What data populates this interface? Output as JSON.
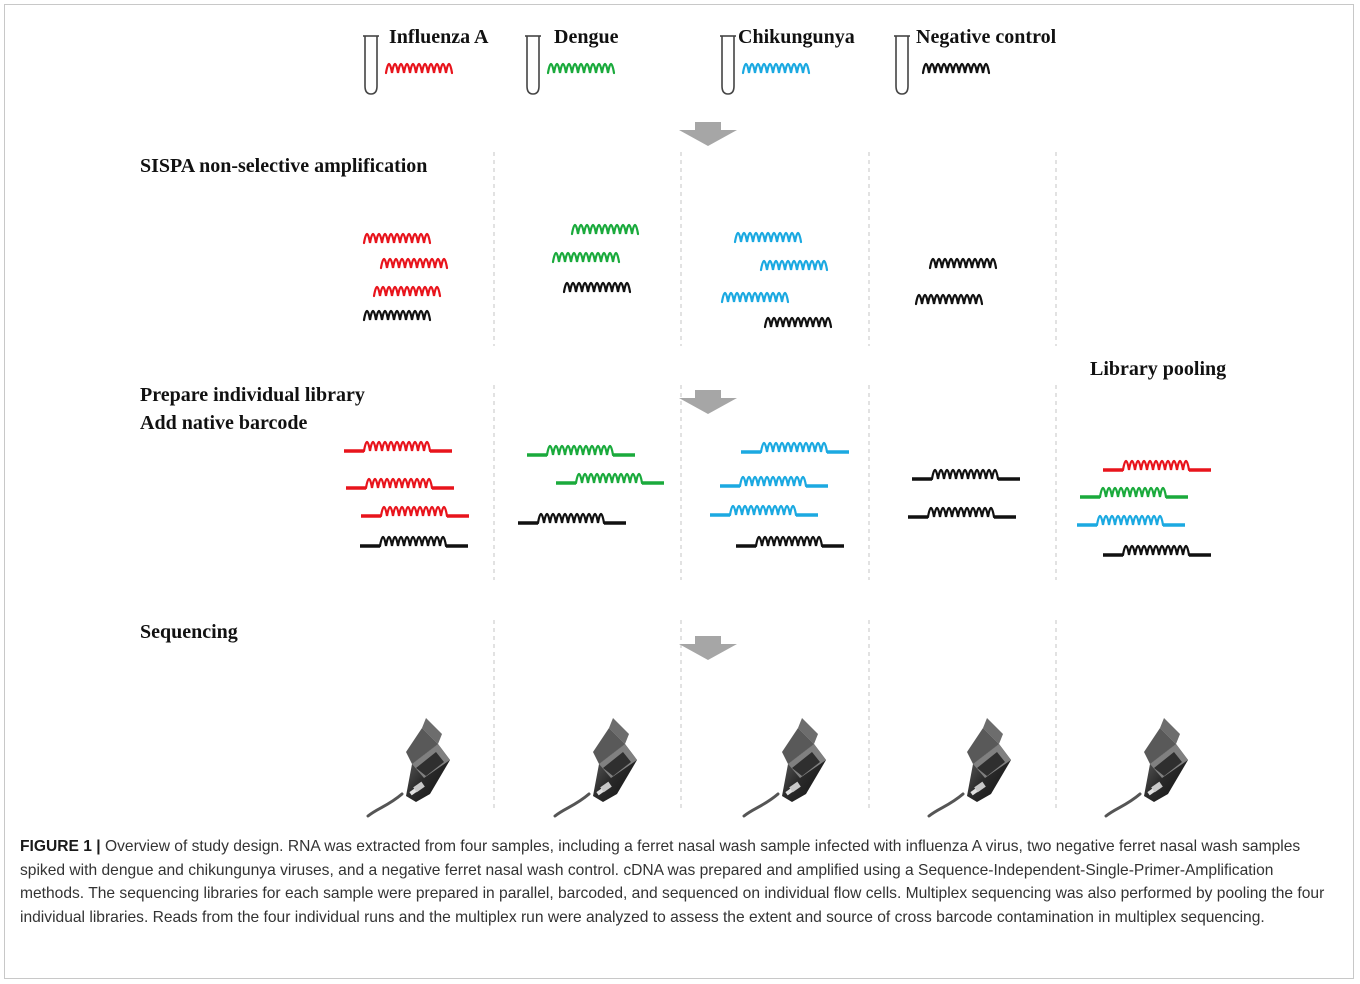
{
  "figure": {
    "samples": [
      {
        "name": "Influenza A",
        "color": "#e8141c"
      },
      {
        "name": "Dengue",
        "color": "#1aaa3c"
      },
      {
        "name": "Chikungunya",
        "color": "#1ba9e1"
      },
      {
        "name": "Negative control",
        "color": "#111111"
      }
    ],
    "steps": {
      "amplification": "SISPA non-selective amplification",
      "library_line1": "Prepare individual library",
      "library_line2": "Add native barcode",
      "pooling": "Library pooling",
      "sequencing": "Sequencing"
    },
    "icons": [
      "sample-tube-icon",
      "down-arrow-icon",
      "sequencer-device-icon"
    ],
    "colors": {
      "arrow": "#a6a6a6",
      "divider": "#c4c4c4",
      "frame": "#c8c8c8",
      "caption_text": "#333333"
    }
  },
  "caption": {
    "label": "FIGURE 1 |",
    "text": "Overview of study design. RNA was extracted from four samples, including a ferret nasal wash sample infected with influenza A virus, two negative ferret nasal wash samples spiked with dengue and chikungunya viruses, and a negative ferret nasal wash control. cDNA was prepared and amplified using a Sequence-Independent-Single-Primer-Amplification methods. The sequencing libraries for each sample were prepared in parallel, barcoded, and sequenced on individual flow cells. Multiplex sequencing was also performed by pooling the four individual libraries. Reads from the four individual runs and the multiplex run were analyzed to assess the extent and source of cross barcode contamination in multiplex sequencing."
  }
}
